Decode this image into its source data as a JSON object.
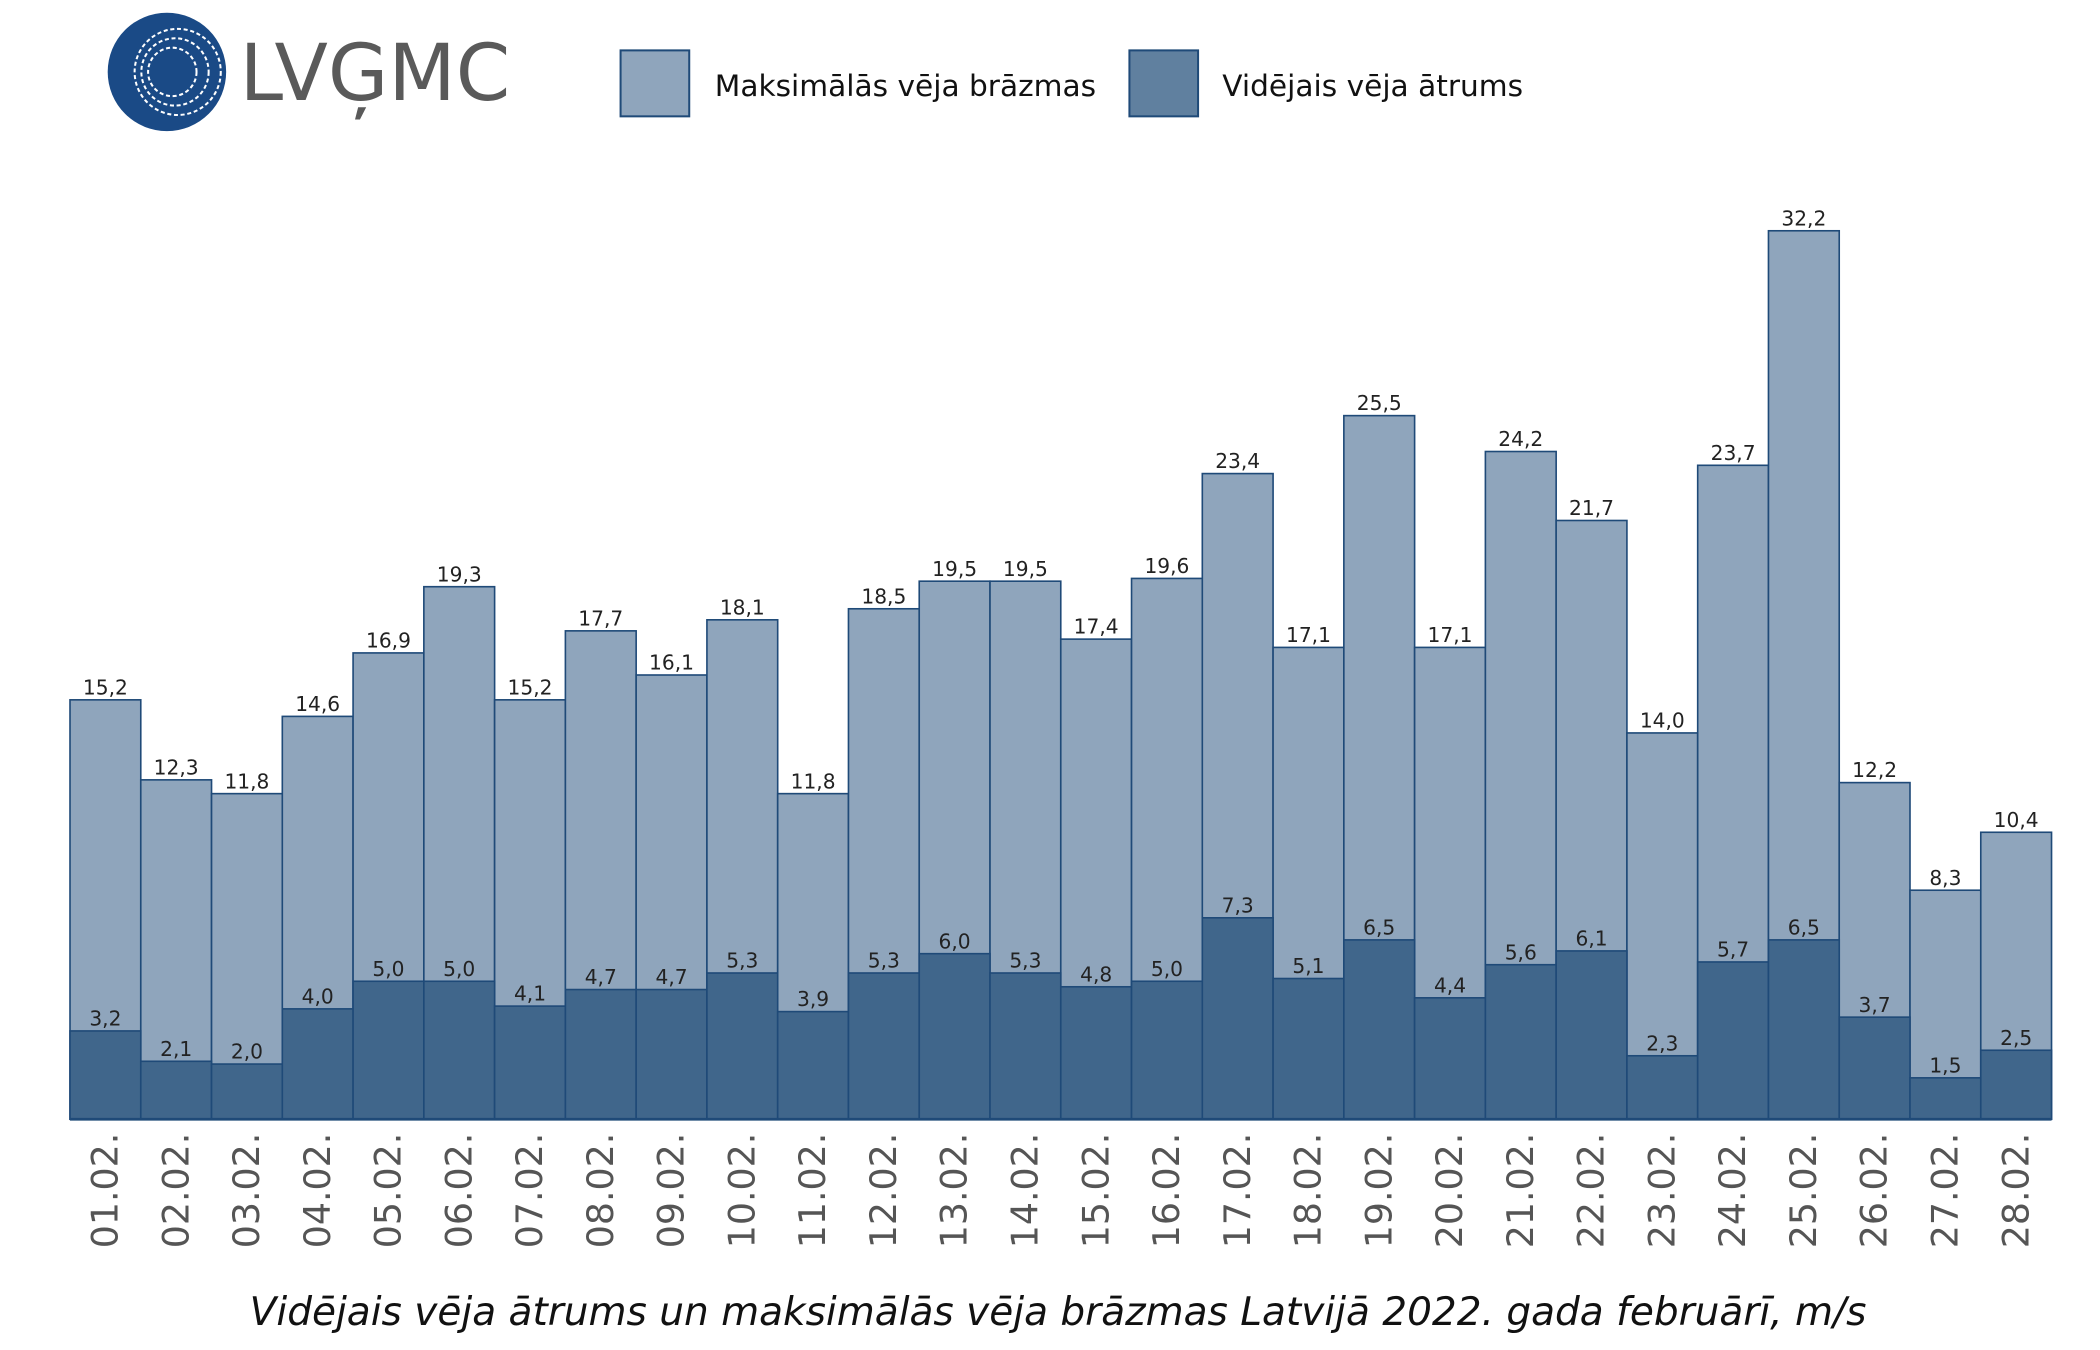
{
  "logo": {
    "text": "LVĢMC",
    "color": "#1a4a86"
  },
  "chart_data": {
    "type": "bar",
    "title": "Vidējais vēja ātrums un maksimālās vēja brāzmas Latvijā 2022. gada februārī, m/s",
    "xlabel": "",
    "ylabel": "",
    "ylim": [
      0,
      32.2
    ],
    "grid": false,
    "legend_position": "top",
    "overlay": true,
    "categories": [
      "01.02.",
      "02.02.",
      "03.02.",
      "04.02.",
      "05.02.",
      "06.02.",
      "07.02.",
      "08.02.",
      "09.02.",
      "10.02.",
      "11.02.",
      "12.02.",
      "13.02.",
      "14.02.",
      "15.02.",
      "16.02.",
      "17.02.",
      "18.02.",
      "19.02.",
      "20.02.",
      "21.02.",
      "22.02.",
      "23.02.",
      "24.02.",
      "25.02.",
      "26.02.",
      "27.02.",
      "28.02."
    ],
    "series": [
      {
        "name": "Maksimālās vēja brāzmas",
        "color": "#8fa5bc",
        "values": [
          15.2,
          12.3,
          11.8,
          14.6,
          16.9,
          19.3,
          15.2,
          17.7,
          16.1,
          18.1,
          11.8,
          18.5,
          19.5,
          19.5,
          17.4,
          19.6,
          23.4,
          17.1,
          25.5,
          17.1,
          24.2,
          21.7,
          14.0,
          23.7,
          32.2,
          12.2,
          8.3,
          10.4
        ]
      },
      {
        "name": "Vidējais vēja ātrums",
        "color": "#40668b",
        "values": [
          3.2,
          2.1,
          2.0,
          4.0,
          5.0,
          5.0,
          4.1,
          4.7,
          4.7,
          5.3,
          3.9,
          5.3,
          6.0,
          5.3,
          4.8,
          5.0,
          7.3,
          5.1,
          6.5,
          4.4,
          5.6,
          6.1,
          2.3,
          5.7,
          6.5,
          3.7,
          1.5,
          2.5
        ]
      }
    ],
    "border_color": "#1f4a78"
  }
}
